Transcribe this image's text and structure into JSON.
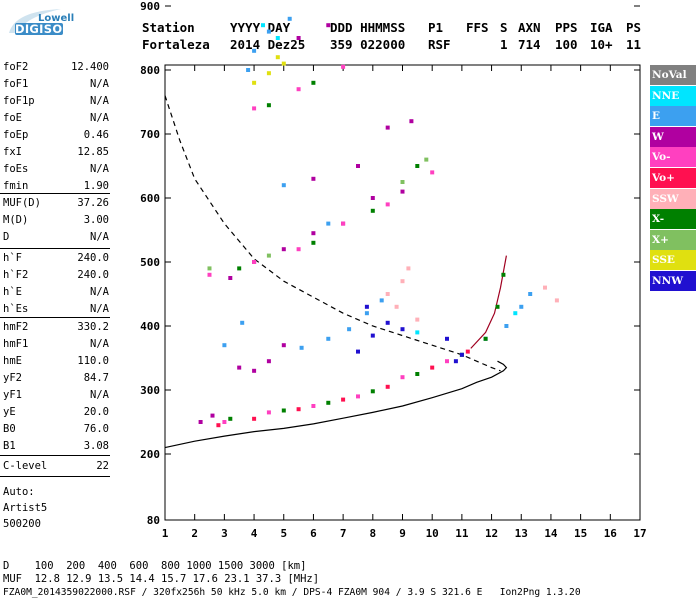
{
  "logo": {
    "brand_line1": "Lowell",
    "brand_line2": "DIGISONDE"
  },
  "header": {
    "row1": [
      "Station",
      "YYYY DAY",
      "DDD HHMMSS",
      "P1",
      "FFS",
      "S",
      "AXN",
      "PPS",
      "IGA",
      "PS"
    ],
    "row2": [
      "Fortaleza",
      "2014 Dez25",
      "359 022000",
      "RSF",
      "1",
      "714",
      "100",
      "10+",
      "11"
    ]
  },
  "sidebar": {
    "group1": [
      {
        "name": "foF2",
        "value": "12.400"
      },
      {
        "name": "foF1",
        "value": "N/A"
      },
      {
        "name": "foF1p",
        "value": "N/A"
      },
      {
        "name": "foE",
        "value": "N/A"
      },
      {
        "name": "foEp",
        "value": "0.46"
      },
      {
        "name": "fxI",
        "value": "12.85"
      },
      {
        "name": "foEs",
        "value": "N/A"
      },
      {
        "name": "fmin",
        "value": "1.90"
      }
    ],
    "group2": [
      {
        "name": "MUF(D)",
        "value": "37.26"
      },
      {
        "name": "M(D)",
        "value": "3.00"
      },
      {
        "name": "D",
        "value": "N/A"
      }
    ],
    "group3": [
      {
        "name": "h`F",
        "value": "240.0"
      },
      {
        "name": "h`F2",
        "value": "240.0"
      },
      {
        "name": "h`E",
        "value": "N/A"
      },
      {
        "name": "h`Es",
        "value": "N/A"
      }
    ],
    "group4": [
      {
        "name": "hmF2",
        "value": "330.2"
      },
      {
        "name": "hmF1",
        "value": "N/A"
      },
      {
        "name": "hmE",
        "value": "110.0"
      },
      {
        "name": "yF2",
        "value": "84.7"
      },
      {
        "name": "yF1",
        "value": "N/A"
      },
      {
        "name": "yE",
        "value": "20.0"
      },
      {
        "name": "B0",
        "value": "76.0"
      },
      {
        "name": "B1",
        "value": "3.08"
      }
    ],
    "group5": [
      {
        "name": "C-level",
        "value": "22"
      }
    ],
    "notes": [
      "Auto:",
      "Artist5",
      "500200"
    ]
  },
  "legend": [
    {
      "label": "NoVal",
      "bg": "#808080",
      "fg": "#ffffff"
    },
    {
      "label": "NNE",
      "bg": "#00e5ff",
      "fg": "#ffffff"
    },
    {
      "label": "E",
      "bg": "#3ca0f0",
      "fg": "#ffffff"
    },
    {
      "label": "W",
      "bg": "#b000a0",
      "fg": "#ffffff"
    },
    {
      "label": "Vo-",
      "bg": "#ff40c0",
      "fg": "#ffffff"
    },
    {
      "label": "Vo+",
      "bg": "#ff1050",
      "fg": "#ffffff"
    },
    {
      "label": "SSW",
      "bg": "#ffb0b8",
      "fg": "#ffffff"
    },
    {
      "label": "X-",
      "bg": "#008000",
      "fg": "#ffffff"
    },
    {
      "label": "X+",
      "bg": "#80c060",
      "fg": "#ffffff"
    },
    {
      "label": "SSE",
      "bg": "#e0e010",
      "fg": "#ffffff"
    },
    {
      "label": "NNW",
      "bg": "#2010d0",
      "fg": "#ffffff"
    }
  ],
  "bottom": {
    "d_line": "D    100  200  400  600  800 1000 1500 3000 [km]",
    "muf_line": "MUF  12.8 12.9 13.5 14.4 15.7 17.6 23.1 37.3 [MHz]",
    "footer": "FZA0M_2014359022000.RSF / 320fx256h 50 kHz 5.0 km / DPS-4 FZA0M 904 / 3.9 S 321.6 E   Ion2Png 1.3.20"
  },
  "chart_data": {
    "type": "scatter",
    "title": "",
    "xlabel": "",
    "ylabel": "",
    "xlim": [
      1,
      17
    ],
    "ylim": [
      80,
      900
    ],
    "x_ticks": [
      1,
      2,
      3,
      4,
      5,
      6,
      7,
      8,
      9,
      10,
      11,
      12,
      13,
      14,
      15,
      16,
      17
    ],
    "y_ticks": [
      80,
      200,
      300,
      400,
      500,
      600,
      700,
      800,
      900
    ],
    "grid": false,
    "legend_position": "right",
    "series": [
      {
        "name": "NNE",
        "color": "#00e5ff",
        "points": [
          [
            4.3,
            870
          ],
          [
            4.8,
            850
          ],
          [
            9.5,
            390
          ],
          [
            12.8,
            420
          ]
        ]
      },
      {
        "name": "E",
        "color": "#3ca0f0",
        "points": [
          [
            4.0,
            830
          ],
          [
            4.5,
            860
          ],
          [
            5.2,
            880
          ],
          [
            3.8,
            800
          ],
          [
            5.0,
            620
          ],
          [
            6.5,
            560
          ],
          [
            5.6,
            366
          ],
          [
            6.5,
            380
          ],
          [
            7.2,
            395
          ],
          [
            7.8,
            420
          ],
          [
            8.3,
            440
          ],
          [
            3.0,
            370
          ],
          [
            3.6,
            405
          ],
          [
            12.5,
            400
          ],
          [
            13.0,
            430
          ],
          [
            13.3,
            450
          ],
          [
            11.8,
            380
          ]
        ]
      },
      {
        "name": "W",
        "color": "#b000a0",
        "points": [
          [
            2.2,
            250
          ],
          [
            2.6,
            260
          ],
          [
            3.5,
            335
          ],
          [
            4.0,
            330
          ],
          [
            4.5,
            345
          ],
          [
            5.0,
            370
          ],
          [
            3.2,
            475
          ],
          [
            4.0,
            500
          ],
          [
            5.0,
            520
          ],
          [
            6.0,
            545
          ],
          [
            7.0,
            560
          ],
          [
            8.0,
            600
          ],
          [
            9.0,
            610
          ],
          [
            6.0,
            630
          ],
          [
            7.5,
            650
          ],
          [
            5.5,
            850
          ],
          [
            6.5,
            870
          ],
          [
            8.5,
            710
          ],
          [
            9.3,
            720
          ]
        ]
      },
      {
        "name": "Vo-",
        "color": "#ff40c0",
        "points": [
          [
            3.0,
            250
          ],
          [
            4.5,
            265
          ],
          [
            6.0,
            275
          ],
          [
            7.5,
            290
          ],
          [
            9.0,
            320
          ],
          [
            10.5,
            345
          ],
          [
            2.5,
            480
          ],
          [
            4.0,
            500
          ],
          [
            5.5,
            520
          ],
          [
            7.0,
            560
          ],
          [
            8.5,
            590
          ],
          [
            10.0,
            640
          ],
          [
            4.0,
            740
          ],
          [
            5.5,
            770
          ],
          [
            7.0,
            805
          ]
        ]
      },
      {
        "name": "Vo+",
        "color": "#ff1050",
        "points": [
          [
            2.8,
            245
          ],
          [
            4.0,
            255
          ],
          [
            5.5,
            270
          ],
          [
            7.0,
            285
          ],
          [
            8.5,
            305
          ],
          [
            10.0,
            335
          ],
          [
            11.2,
            360
          ]
        ]
      },
      {
        "name": "SSW",
        "color": "#ffb0b8",
        "points": [
          [
            8.5,
            450
          ],
          [
            9.0,
            470
          ],
          [
            9.2,
            490
          ],
          [
            8.8,
            430
          ],
          [
            9.5,
            410
          ],
          [
            13.8,
            460
          ],
          [
            14.2,
            440
          ]
        ]
      },
      {
        "name": "X-",
        "color": "#008000",
        "points": [
          [
            3.2,
            255
          ],
          [
            5.0,
            268
          ],
          [
            6.5,
            280
          ],
          [
            8.0,
            298
          ],
          [
            9.5,
            325
          ],
          [
            11.0,
            355
          ],
          [
            11.8,
            380
          ],
          [
            12.2,
            430
          ],
          [
            12.4,
            480
          ],
          [
            3.5,
            490
          ],
          [
            6.0,
            530
          ],
          [
            8.0,
            580
          ],
          [
            9.5,
            650
          ],
          [
            4.5,
            745
          ],
          [
            6.0,
            780
          ]
        ]
      },
      {
        "name": "X+",
        "color": "#80c060",
        "points": [
          [
            2.5,
            490
          ],
          [
            4.5,
            510
          ],
          [
            9.0,
            625
          ],
          [
            9.8,
            660
          ]
        ]
      },
      {
        "name": "SSE",
        "color": "#e0e010",
        "points": [
          [
            4.0,
            780
          ],
          [
            4.5,
            795
          ],
          [
            4.8,
            820
          ],
          [
            5.0,
            810
          ]
        ]
      },
      {
        "name": "NNW",
        "color": "#2010d0",
        "points": [
          [
            7.5,
            360
          ],
          [
            8.0,
            385
          ],
          [
            8.5,
            405
          ],
          [
            9.0,
            395
          ],
          [
            10.5,
            380
          ],
          [
            11.0,
            355
          ],
          [
            10.8,
            345
          ],
          [
            7.8,
            430
          ]
        ]
      }
    ],
    "curves": [
      {
        "name": "profile_dashed",
        "style": "dashed",
        "points": [
          [
            1.0,
            760
          ],
          [
            1.5,
            690
          ],
          [
            2.0,
            630
          ],
          [
            3.0,
            560
          ],
          [
            4.0,
            505
          ],
          [
            5.0,
            470
          ],
          [
            6.0,
            445
          ],
          [
            7.0,
            420
          ],
          [
            8.0,
            400
          ],
          [
            9.0,
            385
          ],
          [
            10.0,
            370
          ],
          [
            11.0,
            355
          ],
          [
            11.5,
            345
          ],
          [
            12.0,
            335
          ],
          [
            12.3,
            330
          ]
        ]
      },
      {
        "name": "profile_solid",
        "style": "solid",
        "points": [
          [
            1.0,
            210
          ],
          [
            2.0,
            220
          ],
          [
            3.0,
            228
          ],
          [
            4.0,
            235
          ],
          [
            5.0,
            240
          ],
          [
            6.0,
            247
          ],
          [
            7.0,
            256
          ],
          [
            8.0,
            265
          ],
          [
            9.0,
            275
          ],
          [
            10.0,
            288
          ],
          [
            11.0,
            302
          ],
          [
            11.5,
            312
          ],
          [
            12.0,
            320
          ],
          [
            12.4,
            330
          ],
          [
            12.5,
            335
          ],
          [
            12.4,
            340
          ],
          [
            12.2,
            345
          ]
        ]
      },
      {
        "name": "trace_x_upper",
        "style": "solid",
        "points": [
          [
            11.3,
            365
          ],
          [
            11.8,
            390
          ],
          [
            12.1,
            420
          ],
          [
            12.3,
            460
          ],
          [
            12.5,
            510
          ]
        ]
      }
    ]
  }
}
